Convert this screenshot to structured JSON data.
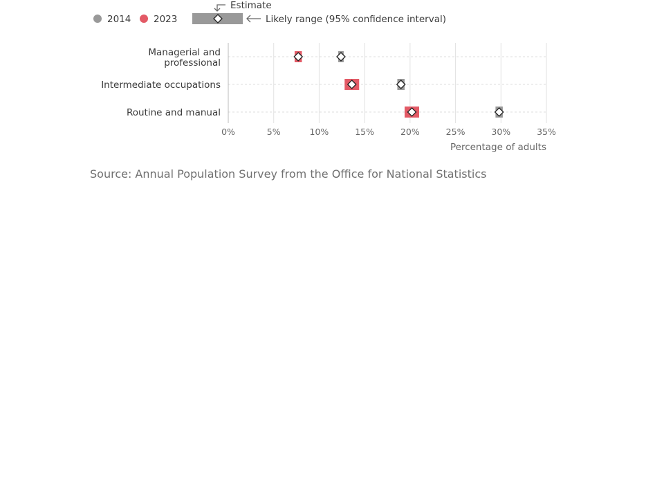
{
  "chart_data": {
    "type": "dot-range",
    "categories": [
      "Managerial and professional",
      "Intermediate occupations",
      "Routine and manual"
    ],
    "series": [
      {
        "name": "2014",
        "color": "#999999",
        "estimates": [
          12.4,
          19.0,
          29.8
        ],
        "lower": [
          12.1,
          18.6,
          29.4
        ],
        "upper": [
          12.7,
          19.4,
          30.2
        ]
      },
      {
        "name": "2023",
        "color": "#e35a66",
        "estimates": [
          7.7,
          13.6,
          20.2
        ],
        "lower": [
          7.3,
          12.8,
          19.4
        ],
        "upper": [
          8.1,
          14.4,
          21.0
        ]
      }
    ],
    "xlabel": "Percentage of adults",
    "xlim": [
      0,
      35
    ],
    "xticks": [
      0,
      5,
      10,
      15,
      20,
      25,
      30,
      35
    ],
    "tick_suffix": "%",
    "grid": true,
    "legend": {
      "position": "top-left",
      "estimate_label": "Estimate",
      "range_label": "Likely range (95% confidence interval)"
    }
  },
  "source_text": "Source: Annual Population Survey from the Office for National Statistics"
}
